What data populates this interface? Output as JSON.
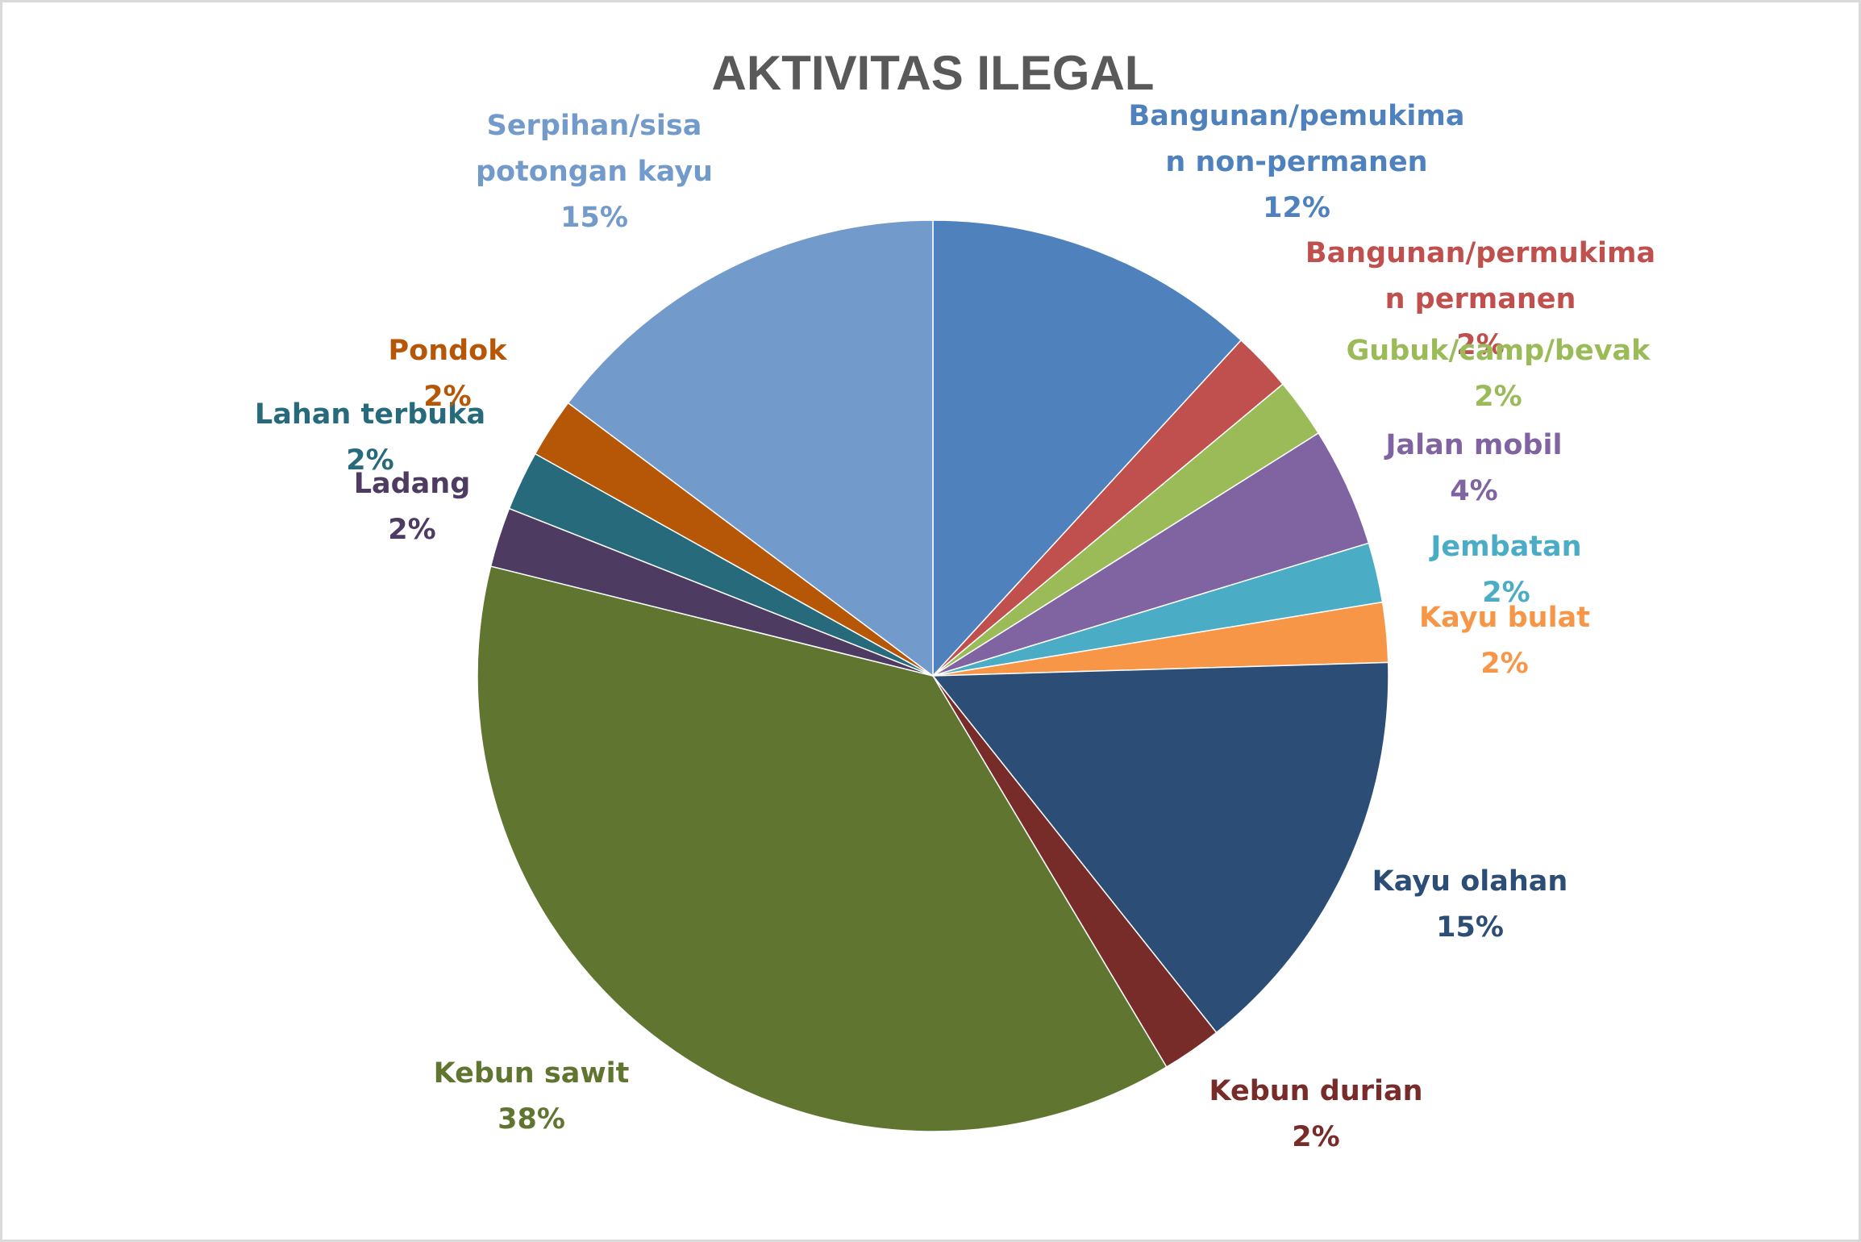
{
  "chart_data": {
    "type": "pie",
    "title": "AKTIVITAS ILEGAL",
    "start_angle_deg": 0,
    "direction": "clockwise",
    "slices": [
      {
        "label_lines": [
          "Bangunan/pemukima",
          "n non-permanen"
        ],
        "percent_label": "12%",
        "value": 12,
        "color": "#4F81BD"
      },
      {
        "label_lines": [
          "Bangunan/permukima",
          "n permanen"
        ],
        "percent_label": "2%",
        "value": 2.15,
        "color": "#C0504D"
      },
      {
        "label_lines": [
          "Gubuk/camp/bevak"
        ],
        "percent_label": "2%",
        "value": 2.15,
        "color": "#9BBB59"
      },
      {
        "label_lines": [
          "Jalan mobil"
        ],
        "percent_label": "4%",
        "value": 4.3,
        "color": "#8064A2"
      },
      {
        "label_lines": [
          "Jembatan"
        ],
        "percent_label": "2%",
        "value": 2.15,
        "color": "#4BACC6"
      },
      {
        "label_lines": [
          "Kayu bulat"
        ],
        "percent_label": "2%",
        "value": 2.15,
        "color": "#F79646"
      },
      {
        "label_lines": [
          "Kayu olahan"
        ],
        "percent_label": "15%",
        "value": 15,
        "color": "#2C4D75"
      },
      {
        "label_lines": [
          "Kebun durian"
        ],
        "percent_label": "2%",
        "value": 2.15,
        "color": "#772C2A"
      },
      {
        "label_lines": [
          "Kebun sawit"
        ],
        "percent_label": "38%",
        "value": 38,
        "color": "#5F7530"
      },
      {
        "label_lines": [
          "Ladang"
        ],
        "percent_label": "2%",
        "value": 2.15,
        "color": "#4D3B62"
      },
      {
        "label_lines": [
          "Lahan terbuka"
        ],
        "percent_label": "2%",
        "value": 2.15,
        "color": "#276A7C"
      },
      {
        "label_lines": [
          "Pondok"
        ],
        "percent_label": "2%",
        "value": 2.15,
        "color": "#B65708"
      },
      {
        "label_lines": [
          "Serpihan/sisa",
          "potongan kayu"
        ],
        "percent_label": "15%",
        "value": 15,
        "color": "#729ACA"
      }
    ]
  }
}
